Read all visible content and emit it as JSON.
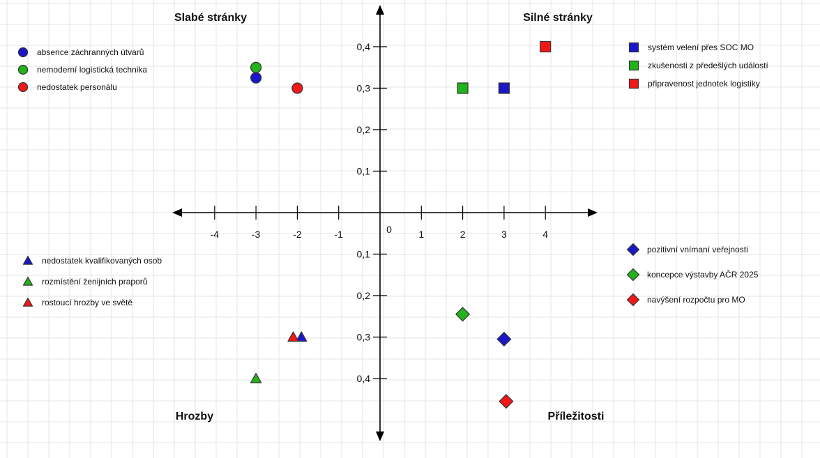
{
  "chart_data": {
    "type": "scatter",
    "title": "",
    "xlabel": "",
    "ylabel": "",
    "xlim": [
      -5,
      5
    ],
    "ylim": [
      -0.5,
      0.5
    ],
    "grid": true,
    "quadrant_titles": {
      "top_left": "Slabé stránky",
      "top_right": "Silné stránky",
      "bottom_left": "Hrozby",
      "bottom_right": "Příležitosti"
    },
    "x_ticks": [
      {
        "value": -4,
        "label": "-4"
      },
      {
        "value": -3,
        "label": "-3"
      },
      {
        "value": -2,
        "label": "-2"
      },
      {
        "value": -1,
        "label": "-1"
      },
      {
        "value": 0,
        "label": "0"
      },
      {
        "value": 1,
        "label": "1"
      },
      {
        "value": 2,
        "label": "2"
      },
      {
        "value": 3,
        "label": "3"
      },
      {
        "value": 4,
        "label": "4"
      }
    ],
    "y_ticks": [
      {
        "value": 0.4,
        "label": "0,4"
      },
      {
        "value": 0.3,
        "label": "0,3"
      },
      {
        "value": 0.2,
        "label": "0,2"
      },
      {
        "value": 0.1,
        "label": "0,1"
      },
      {
        "value": -0.1,
        "label": "0,1"
      },
      {
        "value": -0.2,
        "label": "0,2"
      },
      {
        "value": -0.3,
        "label": "0,3"
      },
      {
        "value": -0.4,
        "label": "0,4"
      }
    ],
    "colors": {
      "blue": "#1b17c8",
      "green": "#22b21a",
      "red": "#f01818",
      "grid": "#e4e4e4",
      "axis": "#000000"
    },
    "series": [
      {
        "name": "absence záchranných útvarů",
        "quadrant": "top_left",
        "shape": "circle",
        "color": "#1b17c8",
        "x": -3,
        "y": 0.325
      },
      {
        "name": "nemoderní logistická technika",
        "quadrant": "top_left",
        "shape": "circle",
        "color": "#22b21a",
        "x": -3,
        "y": 0.35
      },
      {
        "name": "nedostatek personálu",
        "quadrant": "top_left",
        "shape": "circle",
        "color": "#f01818",
        "x": -2,
        "y": 0.3
      },
      {
        "name": "systém velení přes SOC MO",
        "quadrant": "top_right",
        "shape": "square",
        "color": "#1b17c8",
        "x": 3,
        "y": 0.3
      },
      {
        "name": "zkušenosti z předešlých událostí",
        "quadrant": "top_right",
        "shape": "square",
        "color": "#22b21a",
        "x": 2,
        "y": 0.3
      },
      {
        "name": "připravenost jednotek logistiky",
        "quadrant": "top_right",
        "shape": "square",
        "color": "#f01818",
        "x": 4,
        "y": 0.4
      },
      {
        "name": "nedostatek kvalifikovaných osob",
        "quadrant": "bottom_left",
        "shape": "triangle",
        "color": "#1b17c8",
        "x": -1.9,
        "y": -0.3
      },
      {
        "name": "rozmístění ženijních praporů",
        "quadrant": "bottom_left",
        "shape": "triangle",
        "color": "#22b21a",
        "x": -3,
        "y": -0.4
      },
      {
        "name": "rostoucí hrozby ve světě",
        "quadrant": "bottom_left",
        "shape": "triangle",
        "color": "#f01818",
        "x": -2.1,
        "y": -0.3
      },
      {
        "name": "pozitivní vnímaní veřejnosti",
        "quadrant": "bottom_right",
        "shape": "diamond",
        "color": "#1b17c8",
        "x": 3,
        "y": -0.305
      },
      {
        "name": "koncepce výstavby AČR 2025",
        "quadrant": "bottom_right",
        "shape": "diamond",
        "color": "#22b21a",
        "x": 2,
        "y": -0.245
      },
      {
        "name": "navýšení rozpočtu pro MO",
        "quadrant": "bottom_right",
        "shape": "diamond",
        "color": "#f01818",
        "x": 3.05,
        "y": -0.455
      }
    ]
  }
}
